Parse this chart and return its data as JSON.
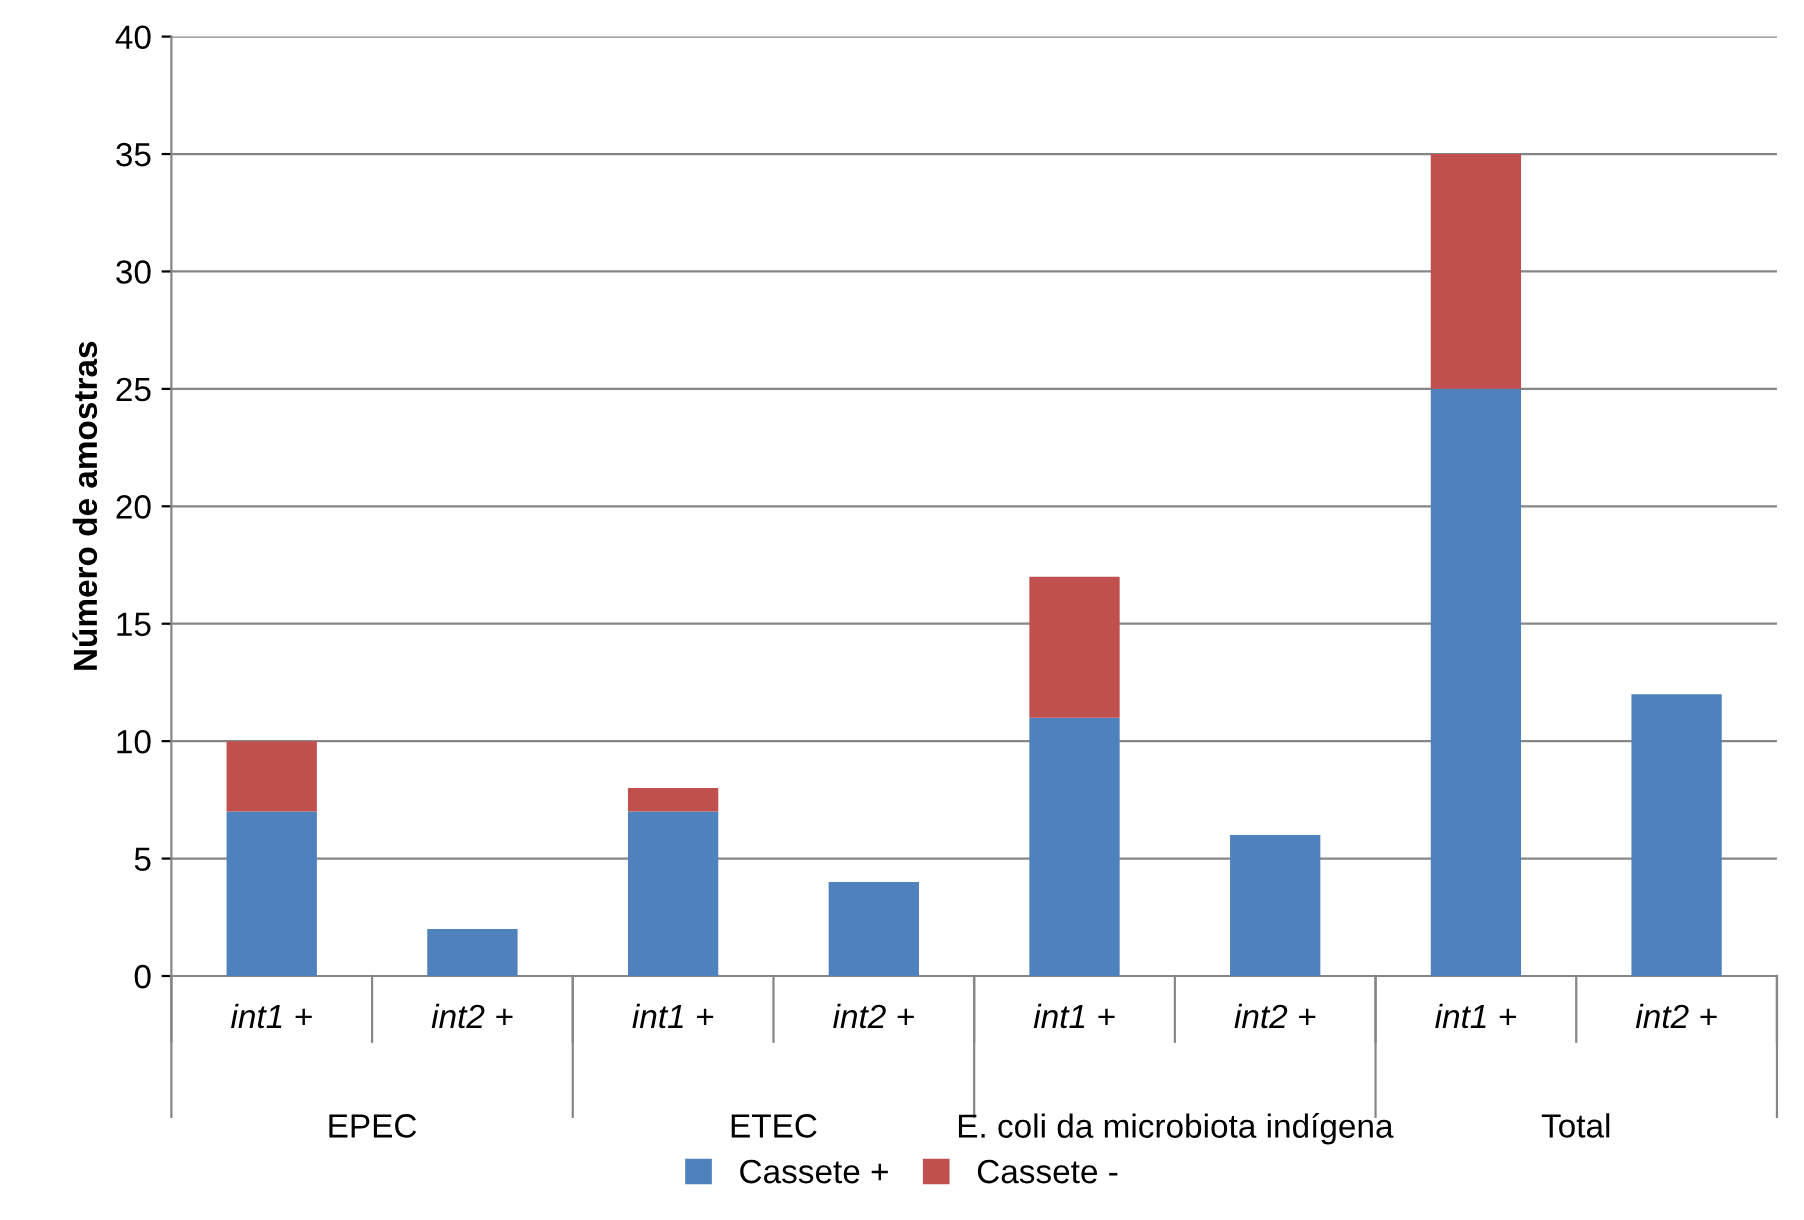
{
  "chart_data": {
    "type": "bar",
    "stacked": true,
    "ylabel": "Número de amostras",
    "categories": [
      "int1 +",
      "int2 +",
      "int1 +",
      "int2 +",
      "int1 +",
      "int2 +",
      "int1 +",
      "int2 +"
    ],
    "series": [
      {
        "name": "Cassete +",
        "color": "#4f81bd",
        "values": [
          7,
          2,
          7,
          4,
          11,
          6,
          25,
          12
        ]
      },
      {
        "name": "Cassete -",
        "color": "#c0504d",
        "values": [
          3,
          null,
          1,
          null,
          6,
          null,
          10,
          null
        ]
      }
    ],
    "annotations": [
      "EPEC",
      "ETEC",
      "E. coli da microbiota indígena",
      "Total"
    ],
    "ylim": [
      0,
      40
    ],
    "yticks": [
      0,
      5,
      10,
      15,
      20,
      25,
      30,
      35,
      40
    ],
    "grid": "y",
    "legend": "bottom"
  }
}
